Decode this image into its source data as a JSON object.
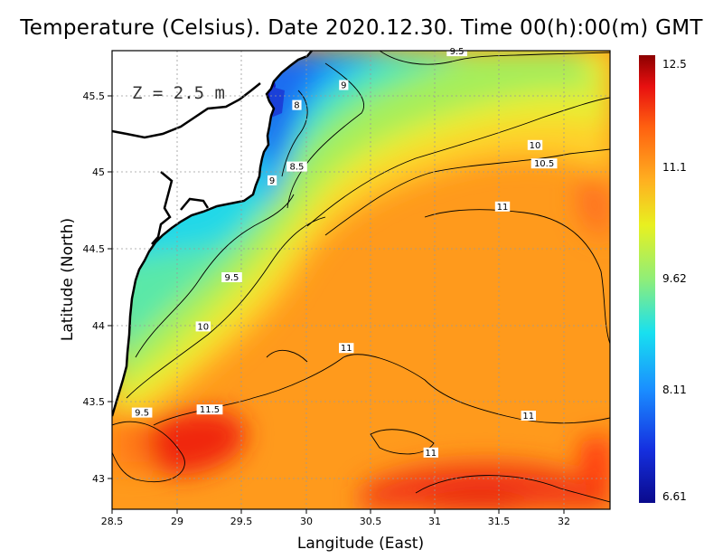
{
  "title": "Temperature (Celsius). Date 2020.12.30. Time 00(h):00(m)  GMT",
  "depth_label": "Z = 2.5 m",
  "x_axis_label": "Langitude (East)",
  "y_axis_label": "Latitude (North)",
  "x_ticks": [
    "28.5",
    "29",
    "29.5",
    "30",
    "30.5",
    "31",
    "31.5",
    "32"
  ],
  "y_ticks": [
    "43",
    "43.5",
    "44",
    "44.5",
    "45",
    "45.5"
  ],
  "colorbar": {
    "labels": [
      "12.5",
      "11.1",
      "9.62",
      "8.11",
      "6.61"
    ],
    "min": 6.61,
    "max": 12.5
  },
  "map_data": {
    "lon_range": [
      28.5,
      32.4
    ],
    "lat_range": [
      42.8,
      45.8
    ],
    "grid": "dotted",
    "contour_labels": [
      {
        "text": "9.5",
        "lon": 31.15,
        "lat": 45.77
      },
      {
        "text": "9",
        "lon": 30.28,
        "lat": 45.55
      },
      {
        "text": "8",
        "lon": 29.92,
        "lat": 45.42
      },
      {
        "text": "10",
        "lon": 31.75,
        "lat": 45.16
      },
      {
        "text": "8.5",
        "lon": 29.92,
        "lat": 45.02
      },
      {
        "text": "10.5",
        "lon": 31.82,
        "lat": 45.04
      },
      {
        "text": "9",
        "lon": 29.73,
        "lat": 44.93
      },
      {
        "text": "11",
        "lon": 31.5,
        "lat": 44.76
      },
      {
        "text": "9.5",
        "lon": 29.42,
        "lat": 44.3
      },
      {
        "text": "10",
        "lon": 29.2,
        "lat": 43.98
      },
      {
        "text": "11",
        "lon": 30.3,
        "lat": 43.84
      },
      {
        "text": "9.5",
        "lon": 28.73,
        "lat": 43.42
      },
      {
        "text": "11.5",
        "lon": 29.25,
        "lat": 43.44
      },
      {
        "text": "11",
        "lon": 31.7,
        "lat": 43.4
      },
      {
        "text": "11",
        "lon": 30.95,
        "lat": 43.16
      }
    ]
  }
}
